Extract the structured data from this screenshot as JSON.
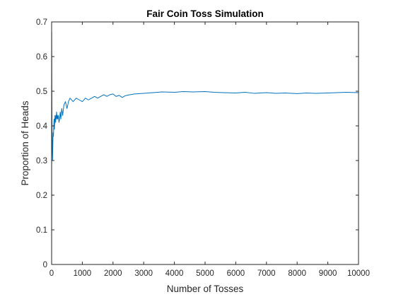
{
  "chart_data": {
    "type": "line",
    "title": "Fair Coin Toss Simulation",
    "xlabel": "Number of Tosses",
    "ylabel": "Proportion of Heads",
    "xlim": [
      0,
      10000
    ],
    "ylim": [
      0,
      0.7
    ],
    "xticks": [
      0,
      1000,
      2000,
      3000,
      4000,
      5000,
      6000,
      7000,
      8000,
      9000,
      10000
    ],
    "yticks": [
      0,
      0.1,
      0.2,
      0.3,
      0.4,
      0.5,
      0.6,
      0.7
    ],
    "grid": false,
    "box": true,
    "colors": {
      "line": "#0072BD",
      "axes": "#262626",
      "background": "#ffffff"
    },
    "series": [
      {
        "x": [
          1,
          2,
          3,
          5,
          8,
          12,
          20,
          30,
          40,
          50,
          60,
          70,
          80,
          90,
          100,
          110,
          120,
          130,
          140,
          150,
          160,
          170,
          180,
          190,
          200,
          220,
          240,
          260,
          280,
          300,
          330,
          360,
          400,
          450,
          500,
          550,
          600,
          700,
          800,
          900,
          1000,
          1100,
          1200,
          1300,
          1400,
          1500,
          1600,
          1700,
          1800,
          1900,
          2000,
          2100,
          2200,
          2300,
          2400,
          2500,
          2700,
          3000,
          3300,
          3600,
          4000,
          4300,
          4600,
          5000,
          5300,
          5600,
          6000,
          6300,
          6600,
          7000,
          7300,
          7600,
          8000,
          8300,
          8600,
          9000,
          9300,
          9600,
          10000
        ],
        "y": [
          0,
          0.5,
          0.67,
          0.6,
          0.5,
          0.42,
          0.35,
          0.3,
          0.35,
          0.38,
          0.37,
          0.4,
          0.42,
          0.39,
          0.41,
          0.43,
          0.42,
          0.41,
          0.43,
          0.42,
          0.44,
          0.43,
          0.42,
          0.43,
          0.42,
          0.43,
          0.41,
          0.42,
          0.44,
          0.42,
          0.45,
          0.43,
          0.46,
          0.47,
          0.45,
          0.47,
          0.48,
          0.47,
          0.48,
          0.475,
          0.47,
          0.48,
          0.475,
          0.48,
          0.485,
          0.48,
          0.485,
          0.49,
          0.485,
          0.49,
          0.492,
          0.485,
          0.488,
          0.482,
          0.487,
          0.489,
          0.492,
          0.494,
          0.496,
          0.498,
          0.497,
          0.499,
          0.498,
          0.499,
          0.497,
          0.496,
          0.495,
          0.497,
          0.494,
          0.496,
          0.494,
          0.495,
          0.493,
          0.495,
          0.494,
          0.495,
          0.496,
          0.497,
          0.496
        ]
      }
    ]
  }
}
